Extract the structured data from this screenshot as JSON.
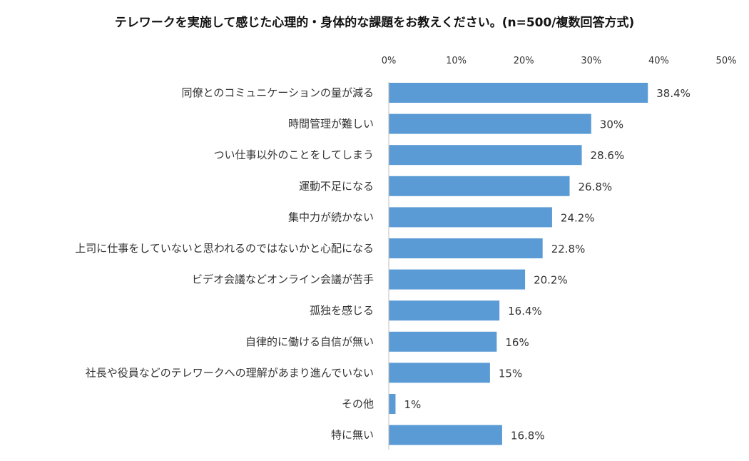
{
  "chart_data": {
    "type": "bar",
    "orientation": "horizontal",
    "title": "テレワークを実施して感じた心理的・身体的な課題をお教えください。(n=500/複数回答方式)",
    "xlabel": "",
    "ylabel": "",
    "xlim": [
      0,
      50
    ],
    "ticks": [
      "0%",
      "10%",
      "20%",
      "30%",
      "40%",
      "50%"
    ],
    "tick_values": [
      0,
      10,
      20,
      30,
      40,
      50
    ],
    "grid": false,
    "legend": "none",
    "bar_color": "#5b9bd5",
    "categories": [
      "同僚とのコミュニケーションの量が減る",
      "時間管理が難しい",
      "つい仕事以外のことをしてしまう",
      "運動不足になる",
      "集中力が続かない",
      "上司に仕事をしていないと思われるのではないかと心配になる",
      "ビデオ会議などオンライン会議が苦手",
      "孤独を感じる",
      "自律的に働ける自信が無い",
      "社長や役員などのテレワークへの理解があまり進んでいない",
      "その他",
      "特に無い"
    ],
    "values": [
      38.4,
      30,
      28.6,
      26.8,
      24.2,
      22.8,
      20.2,
      16.4,
      16,
      15,
      1,
      16.8
    ],
    "value_labels": [
      "38.4%",
      "30%",
      "28.6%",
      "26.8%",
      "24.2%",
      "22.8%",
      "20.2%",
      "16.4%",
      "16%",
      "15%",
      "1%",
      "16.8%"
    ]
  }
}
